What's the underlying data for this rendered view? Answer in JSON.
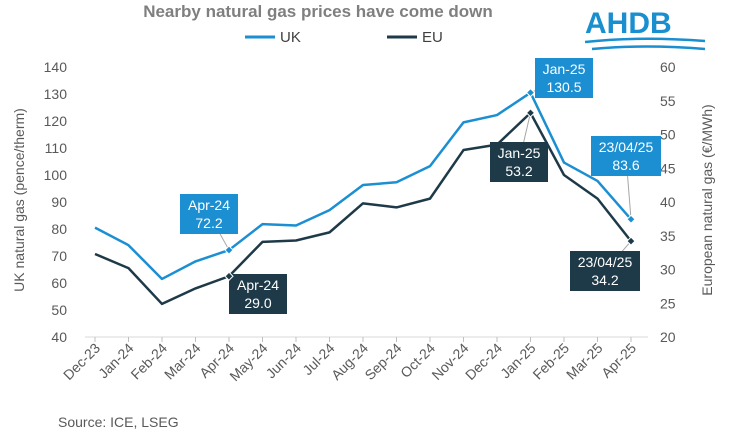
{
  "chart_data": {
    "type": "line",
    "title": "Nearby natural gas prices have come down",
    "categories": [
      "Dec-23",
      "Jan-24",
      "Feb-24",
      "Mar-24",
      "Apr-24",
      "May-24",
      "Jun-24",
      "Jul-24",
      "Aug-24",
      "Sep-24",
      "Oct-24",
      "Nov-24",
      "Dec-24",
      "Jan-25",
      "Feb-25",
      "Mar-25",
      "Apr-25"
    ],
    "series": [
      {
        "name": "UK",
        "axis": "left",
        "color": "#1b8fd2",
        "values": [
          80.5,
          74.0,
          61.5,
          68.0,
          72.2,
          81.8,
          81.3,
          87.0,
          96.3,
          97.3,
          103.3,
          119.5,
          122.2,
          130.5,
          104.6,
          97.8,
          83.6
        ]
      },
      {
        "name": "EU",
        "axis": "right",
        "color": "#1e3a48",
        "values": [
          32.3,
          30.2,
          24.9,
          27.2,
          29.0,
          34.1,
          34.3,
          35.5,
          39.8,
          39.2,
          40.5,
          47.7,
          48.5,
          53.2,
          44.0,
          40.5,
          34.2
        ]
      }
    ],
    "ylabel_left": "UK natural gas (pence/therm)",
    "ylabel_right": "European natural gas (€/MWh)",
    "ylim_left": [
      40,
      140
    ],
    "yticks_left": [
      40,
      50,
      60,
      70,
      80,
      90,
      100,
      110,
      120,
      130,
      140
    ],
    "ylim_right": [
      20,
      60
    ],
    "yticks_right": [
      20,
      25,
      30,
      35,
      40,
      45,
      50,
      55,
      60
    ],
    "grid": false,
    "legend": "top-center",
    "annotations": [
      {
        "series": 0,
        "index": 4,
        "lines": [
          "Apr-24",
          "72.2"
        ]
      },
      {
        "series": 1,
        "index": 4,
        "lines": [
          "Apr-24",
          "29.0"
        ]
      },
      {
        "series": 0,
        "index": 13,
        "lines": [
          "Jan-25",
          "130.5"
        ]
      },
      {
        "series": 1,
        "index": 13,
        "lines": [
          "Jan-25",
          "53.2"
        ]
      },
      {
        "series": 0,
        "index": 16,
        "lines": [
          "23/04/25",
          "83.6"
        ]
      },
      {
        "series": 1,
        "index": 16,
        "lines": [
          "23/04/25",
          "34.2"
        ]
      }
    ]
  },
  "source": "Source: ICE, LSEG",
  "logo": {
    "text": "AHDB",
    "color": "#1a8fd0"
  }
}
